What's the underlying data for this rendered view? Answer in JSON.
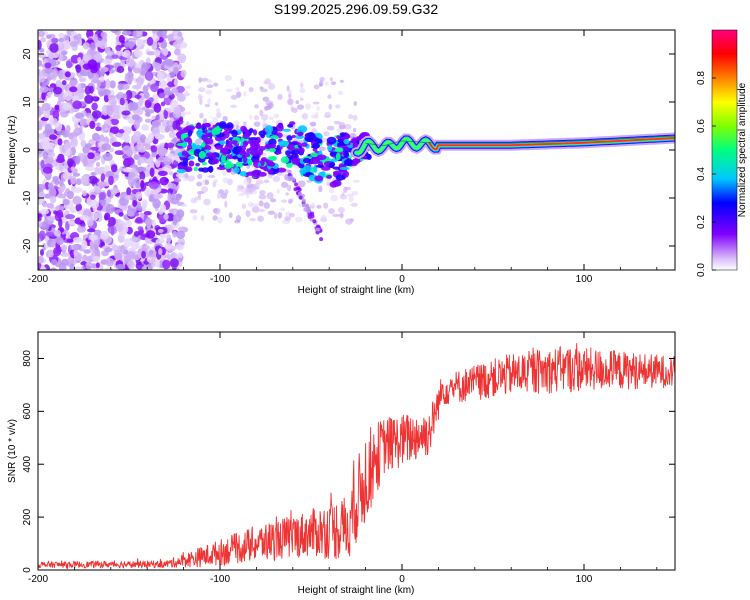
{
  "title": "S199.2025.296.09.59.G32",
  "chart_data": [
    {
      "type": "heatmap",
      "xlabel": "Height of straight line (km)",
      "ylabel": "Frequency (Hz)",
      "xlim": [
        -200,
        150
      ],
      "ylim": [
        -25,
        25
      ],
      "x_ticks": [
        -200,
        -100,
        0,
        100
      ],
      "x_tick_labels": [
        "-200",
        "-100",
        "0",
        "100"
      ],
      "y_ticks": [
        -20,
        -10,
        0,
        10,
        20
      ],
      "y_tick_labels": [
        "-20",
        "-10",
        "0",
        "10",
        "20"
      ],
      "colorbar": {
        "label": "Normalized spectral amplitude",
        "range": [
          0,
          1
        ],
        "ticks": [
          0.0,
          0.2,
          0.4,
          0.6,
          0.8
        ],
        "tick_labels": [
          "0.0",
          "0.2",
          "0.4",
          "0.6",
          "0.8"
        ],
        "colors": [
          "#d8b8f8",
          "#8000ff",
          "#0000ff",
          "#00c8ff",
          "#00ff80",
          "#80ff00",
          "#ffff00",
          "#ff8000",
          "#ff0000",
          "#ff0080"
        ]
      },
      "ridge": [
        {
          "x": -120,
          "y": 0
        },
        {
          "x": -100,
          "y": 1
        },
        {
          "x": -80,
          "y": -1
        },
        {
          "x": -60,
          "y": 1
        },
        {
          "x": -40,
          "y": -3
        },
        {
          "x": -30,
          "y": -1
        },
        {
          "x": -20,
          "y": 1
        },
        {
          "x": -10,
          "y": 0.5
        },
        {
          "x": 0,
          "y": 1.5
        },
        {
          "x": 20,
          "y": 1
        },
        {
          "x": 60,
          "y": 1
        },
        {
          "x": 100,
          "y": 1.5
        },
        {
          "x": 150,
          "y": 2.5
        }
      ]
    },
    {
      "type": "line",
      "xlabel": "Height of straight line (km)",
      "ylabel": "SNR (10 * v/v)",
      "xlim": [
        -200,
        150
      ],
      "ylim": [
        0,
        900
      ],
      "x_ticks": [
        -200,
        -100,
        0,
        100
      ],
      "x_tick_labels": [
        "-200",
        "-100",
        "0",
        "100"
      ],
      "y_ticks": [
        0,
        200,
        400,
        600,
        800
      ],
      "y_tick_labels": [
        "0",
        "200",
        "400",
        "600",
        "800"
      ],
      "series": [
        {
          "name": "SNR",
          "color": "#ee3333",
          "envelope": [
            {
              "x": -200,
              "mean": 20,
              "amp": 12
            },
            {
              "x": -130,
              "mean": 22,
              "amp": 14
            },
            {
              "x": -110,
              "mean": 50,
              "amp": 40
            },
            {
              "x": -80,
              "mean": 100,
              "amp": 70
            },
            {
              "x": -50,
              "mean": 140,
              "amp": 90
            },
            {
              "x": -30,
              "mean": 160,
              "amp": 130
            },
            {
              "x": -20,
              "mean": 350,
              "amp": 180
            },
            {
              "x": -10,
              "mean": 470,
              "amp": 110
            },
            {
              "x": 15,
              "mean": 520,
              "amp": 90
            },
            {
              "x": 22,
              "mean": 680,
              "amp": 60
            },
            {
              "x": 60,
              "mean": 740,
              "amp": 80
            },
            {
              "x": 90,
              "mean": 760,
              "amp": 90
            },
            {
              "x": 150,
              "mean": 750,
              "amp": 60
            }
          ]
        }
      ]
    }
  ]
}
